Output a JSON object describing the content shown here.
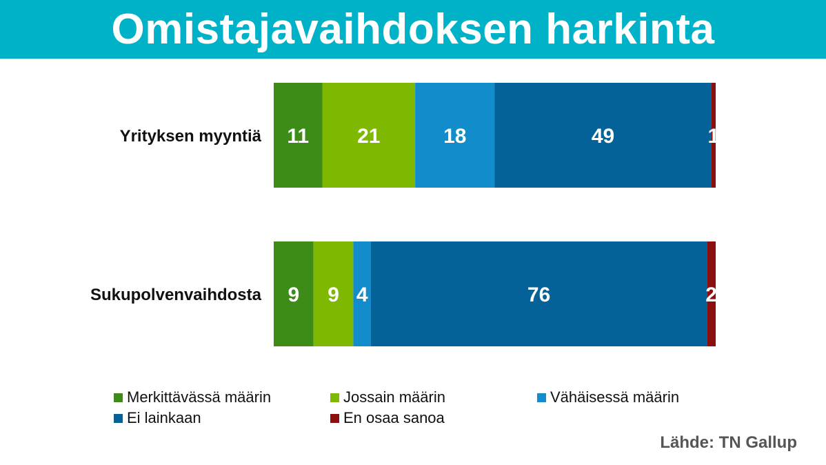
{
  "title": "Omistajavaihdoksen harkinta",
  "source": "Lähde: TN Gallup",
  "chart_data": {
    "type": "bar",
    "orientation": "horizontal",
    "stacked": true,
    "categories": [
      "Yrityksen myyntiä",
      "Sukupolvenvaihdosta"
    ],
    "series": [
      {
        "name": "Merkittävässä määrin",
        "color": "#3c8c17",
        "values": [
          11,
          9
        ]
      },
      {
        "name": "Jossain määrin",
        "color": "#7fb800",
        "values": [
          21,
          9
        ]
      },
      {
        "name": "Vähäisessä määrin",
        "color": "#128ccb",
        "values": [
          18,
          4
        ]
      },
      {
        "name": "Ei lainkaan",
        "color": "#046298",
        "values": [
          49,
          76
        ]
      },
      {
        "name": "En osaa sanoa",
        "color": "#8b0f0f",
        "values": [
          1,
          2
        ]
      }
    ],
    "xlim": [
      0,
      100
    ],
    "grid": false,
    "legend_position": "bottom"
  }
}
